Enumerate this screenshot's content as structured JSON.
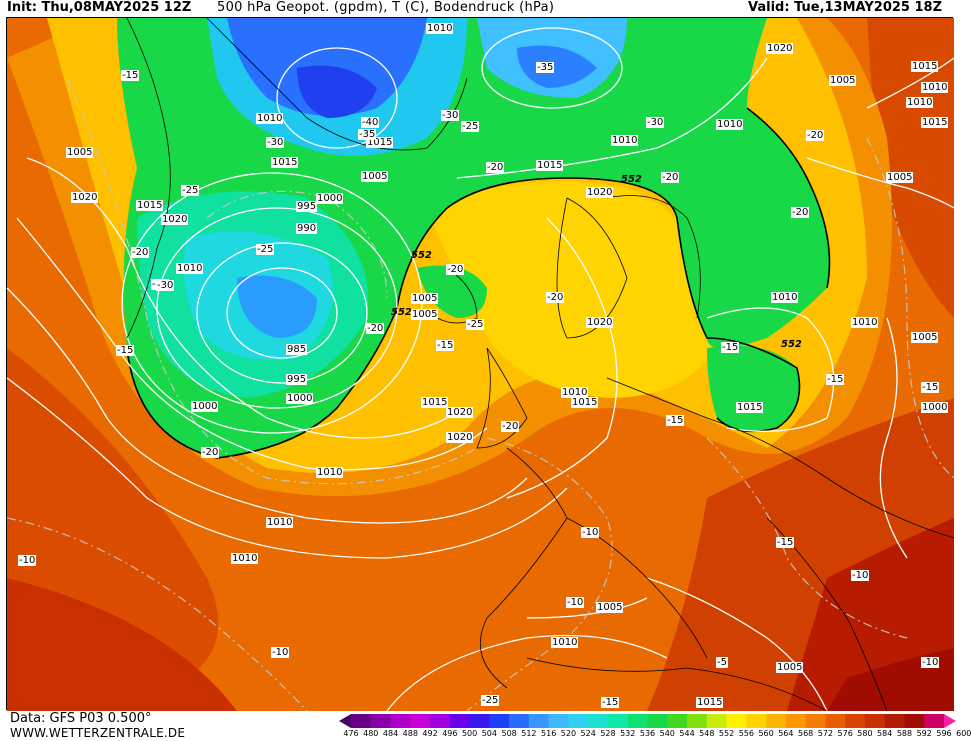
{
  "header": {
    "init": "Init: Thu,08MAY2025 12Z",
    "title": "500 hPa Geopot. (gpdm), T (C), Bodendruck (hPa)",
    "valid": "Valid: Tue,13MAY2025 18Z"
  },
  "footer": {
    "data": "Data: GFS P03 0.500°",
    "site": "WWW.WETTERZENTRALE.DE"
  },
  "map": {
    "isobar_labels": [
      "1010",
      "1020",
      "1005",
      "1015",
      "1010",
      "1005",
      "1020",
      "1015",
      "1010",
      "1020",
      "1020",
      "1010",
      "1015",
      "1005",
      "995",
      "990",
      "985",
      "995",
      "1000",
      "1000",
      "1005",
      "1005",
      "1010",
      "1015",
      "1020",
      "1010",
      "1015",
      "1015",
      "1005",
      "1010",
      "1010",
      "1000",
      "1020",
      "1010",
      "1005",
      "1010",
      "1015",
      "1020",
      "1015",
      "1010",
      "1010",
      "1005",
      "1010",
      "1005",
      "1015",
      "1015",
      "1000",
      "1010"
    ],
    "temperature_labels": [
      "-15",
      "-30",
      "-25",
      "-20",
      "-35",
      "-40",
      "-35",
      "-30",
      "-30",
      "-35",
      "-25",
      "-20",
      "-20",
      "-30",
      "-25",
      "-15",
      "-20",
      "-20",
      "-20",
      "-15",
      "-25",
      "-20",
      "-20",
      "-20",
      "-20",
      "-15",
      "-15",
      "-15",
      "-10",
      "-10",
      "-15",
      "-10",
      "-10",
      "-10",
      "-5",
      "-10",
      "-15",
      "-25",
      "-15",
      "-20"
    ],
    "height_labels": [
      "552",
      "552",
      "552",
      "552"
    ]
  },
  "colorbar": {
    "unit": "gpdm",
    "labels": [
      "476",
      "480",
      "484",
      "488",
      "492",
      "496",
      "500",
      "504",
      "508",
      "512",
      "516",
      "520",
      "524",
      "528",
      "532",
      "536",
      "540",
      "544",
      "548",
      "552",
      "556",
      "560",
      "564",
      "568",
      "572",
      "576",
      "580",
      "584",
      "588",
      "592",
      "596",
      "600"
    ],
    "colors": [
      "#4a0066",
      "#6a0088",
      "#8a00a8",
      "#b000c8",
      "#c800d8",
      "#a000e0",
      "#6a00e8",
      "#3a18f0",
      "#2040f8",
      "#2a6cff",
      "#3896ff",
      "#40b8ff",
      "#2fd0f0",
      "#1ee0d0",
      "#10e8a8",
      "#10e070",
      "#14d848",
      "#40d820",
      "#80e010",
      "#c8ec10",
      "#fff000",
      "#ffd400",
      "#ffb400",
      "#ff9800",
      "#f47c00",
      "#e85e00",
      "#d84400",
      "#c83000",
      "#b41c00",
      "#a00c00",
      "#cc0066",
      "#ff20a0"
    ]
  }
}
